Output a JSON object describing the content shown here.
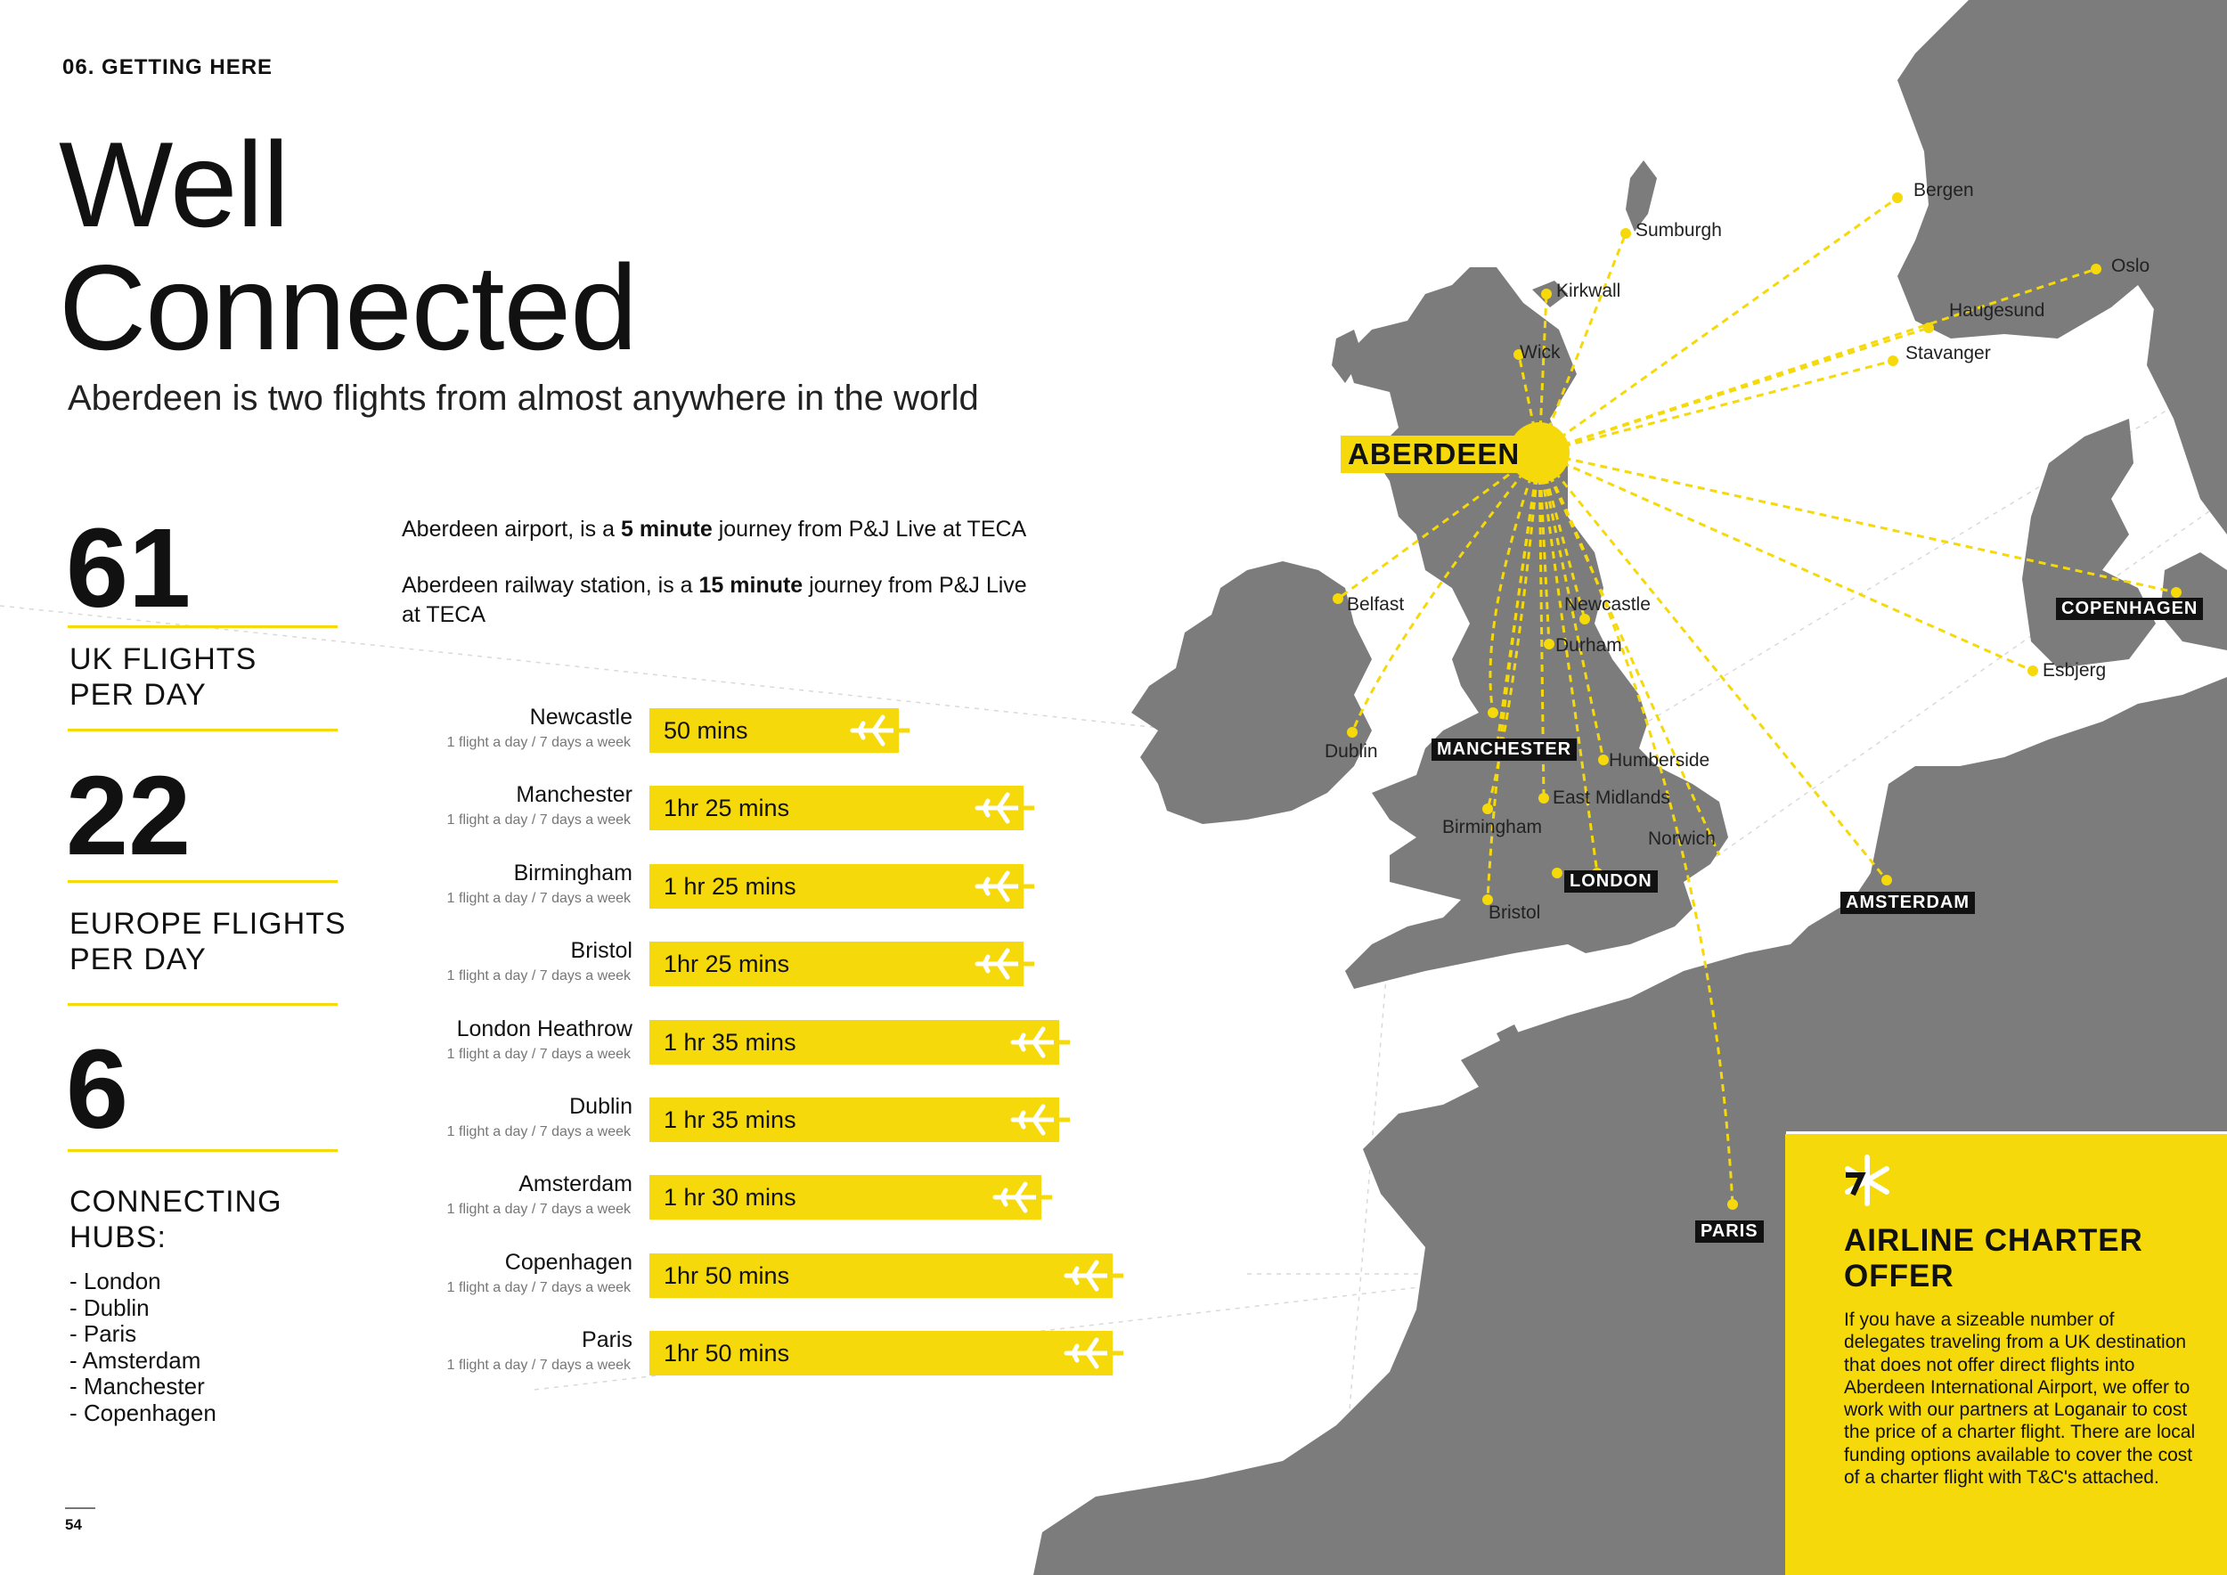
{
  "section_label": "06. GETTING HERE",
  "title_line1": "Well",
  "title_line2": "Connected",
  "subtitle": "Aberdeen is two flights from almost anywhere in the world",
  "stats": [
    {
      "number": "61",
      "label_line1": "UK FLIGHTS",
      "label_line2": "PER DAY"
    },
    {
      "number": "22",
      "label_line1": "EUROPE FLIGHTS",
      "label_line2": "PER DAY"
    },
    {
      "number": "6",
      "label_line1": "CONNECTING",
      "label_line2": "HUBS:"
    }
  ],
  "hubs": [
    "- London",
    "- Dublin",
    "- Paris",
    "- Amsterdam",
    "- Manchester",
    "- Copenhagen"
  ],
  "journey": {
    "airport_pre": "Aberdeen airport, is a ",
    "airport_bold": "5 minute",
    "airport_post": " journey from P&J Live at TECA",
    "rail_pre": "Aberdeen railway station, is a ",
    "rail_bold": "15 minute",
    "rail_post": " journey from P&J Live at TECA"
  },
  "flights": [
    {
      "city": "Newcastle",
      "frequency": "1 flight a day / 7 days a week",
      "duration": "50 mins",
      "minutes": 50
    },
    {
      "city": "Manchester",
      "frequency": "1 flight a day / 7 days a week",
      "duration": "1hr 25 mins",
      "minutes": 85
    },
    {
      "city": "Birmingham",
      "frequency": "1 flight a day / 7 days a week",
      "duration": "1 hr 25 mins",
      "minutes": 85
    },
    {
      "city": "Bristol",
      "frequency": "1 flight a day / 7 days a week",
      "duration": "1hr 25 mins",
      "minutes": 85
    },
    {
      "city": "London Heathrow",
      "frequency": "1 flight a day / 7 days a week",
      "duration": "1 hr 35 mins",
      "minutes": 95
    },
    {
      "city": "Dublin",
      "frequency": "1 flight a day / 7 days a week",
      "duration": "1 hr 35 mins",
      "minutes": 95
    },
    {
      "city": "Amsterdam",
      "frequency": "1 flight a day / 7 days a week",
      "duration": "1 hr 30 mins",
      "minutes": 90
    },
    {
      "city": "Copenhagen",
      "frequency": "1 flight a day / 7 days a week",
      "duration": "1hr 50 mins",
      "minutes": 110
    },
    {
      "city": "Paris",
      "frequency": "1 flight a day / 7 days a week",
      "duration": "1hr 50 mins",
      "minutes": 110
    }
  ],
  "map": {
    "origin": "ABERDEEN",
    "hub_tags": [
      "MANCHESTER",
      "LONDON",
      "AMSTERDAM",
      "COPENHAGEN",
      "PARIS"
    ],
    "destinations": [
      "Sumburgh",
      "Kirkwall",
      "Wick",
      "Bergen",
      "Oslo",
      "Haugesund",
      "Stavanger",
      "Belfast",
      "Newcastle",
      "Durham",
      "Dublin",
      "Humberside",
      "East Midlands",
      "Birmingham",
      "Norwich",
      "Bristol",
      "Esbjerg"
    ]
  },
  "charter": {
    "title_line1": "AIRLINE CHARTER",
    "title_line2": "OFFER",
    "body": "If you have a sizeable number of delegates traveling from a UK destination that does not offer direct flights into Aberdeen International Airport, we offer to work with our partners at Loganair to cost the price of a charter flight. There are local funding options available to cover the cost of a charter flight with T&C's attached."
  },
  "page_number": "54",
  "colors": {
    "accent": "#f5d90a",
    "land": "#7c7c7c",
    "text": "#111111",
    "tag_bg": "#111111"
  }
}
